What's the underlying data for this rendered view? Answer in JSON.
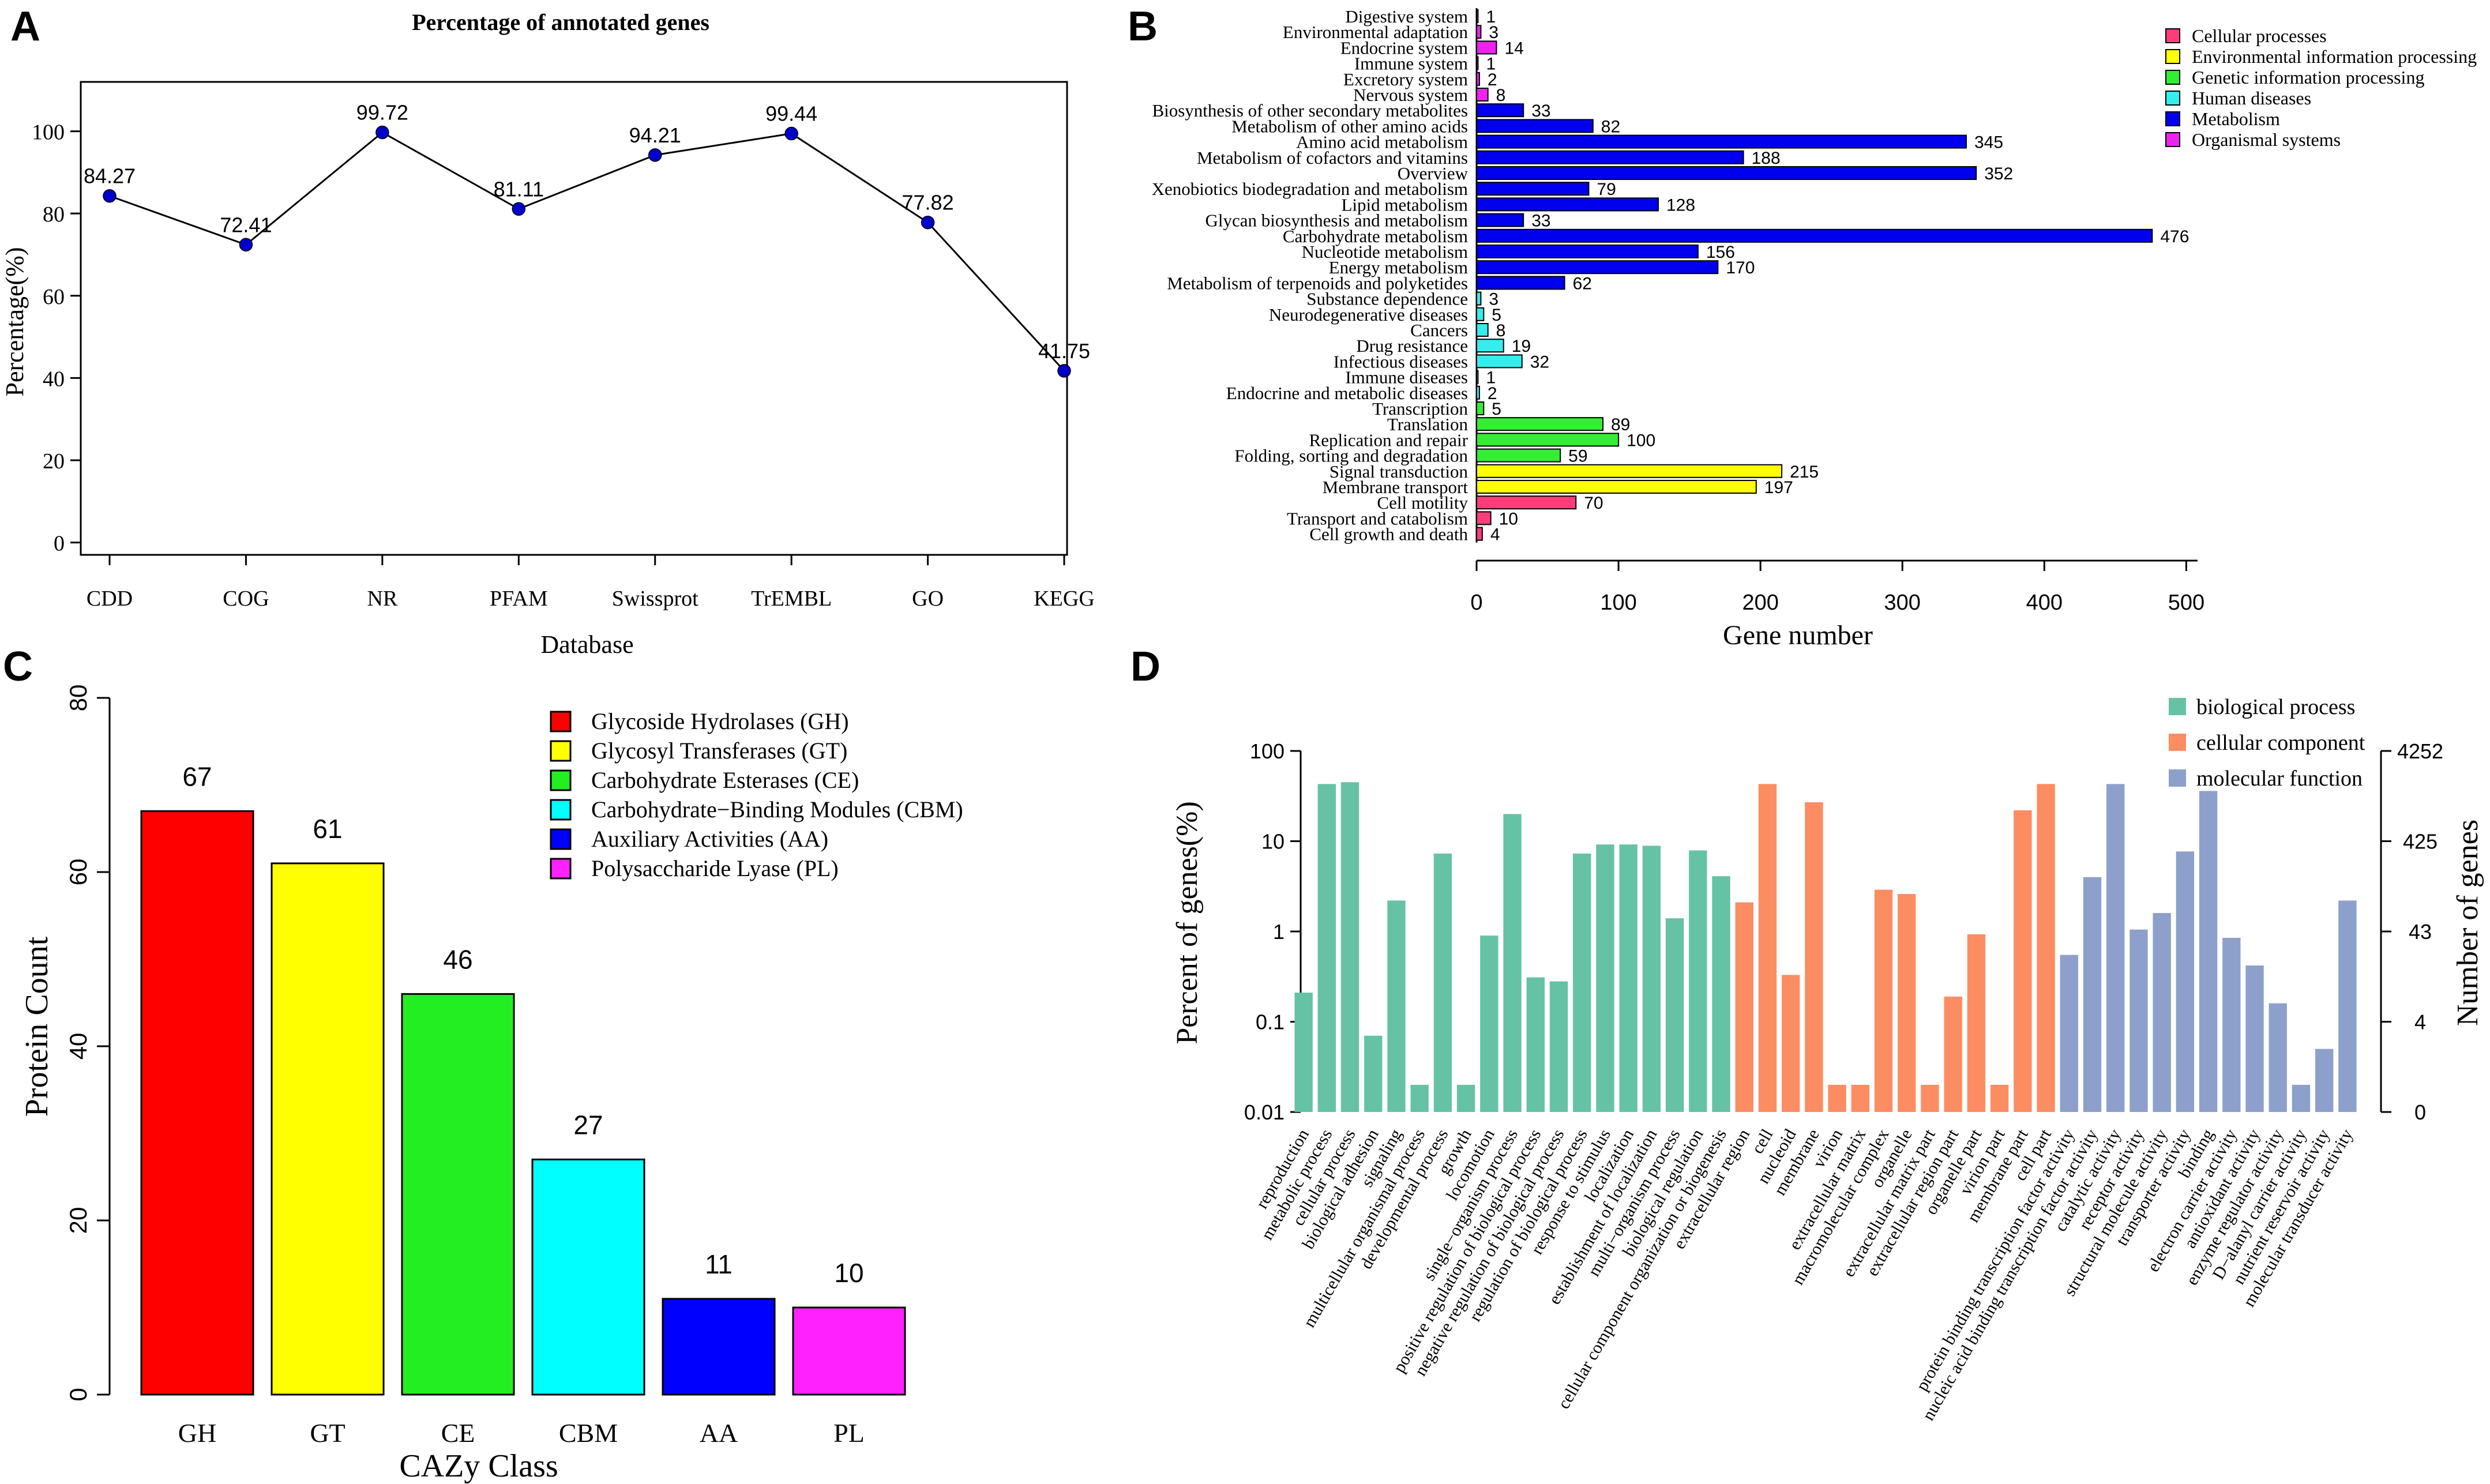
{
  "panels": {
    "a": {
      "letter": "A"
    },
    "b": {
      "letter": "B"
    },
    "c": {
      "letter": "C"
    },
    "d": {
      "letter": "D"
    }
  },
  "chart_data": [
    {
      "id": "a",
      "type": "line",
      "title": "Percentage of annotated genes",
      "xlabel": "Database",
      "ylabel": "Percentage(%)",
      "categories": [
        "CDD",
        "COG",
        "NR",
        "PFAM",
        "Swissprot",
        "TrEMBL",
        "GO",
        "KEGG"
      ],
      "values": [
        84.27,
        72.41,
        99.72,
        81.11,
        94.21,
        99.44,
        77.82,
        41.75
      ],
      "labels": [
        "84.27",
        "72.41",
        "99.72",
        "81.11",
        "94.21",
        "99.44",
        "77.82",
        "41.75"
      ],
      "yticks": [
        0,
        20,
        40,
        60,
        80,
        100
      ],
      "ylim": [
        -3,
        112
      ],
      "point_color": "#0000cc"
    },
    {
      "id": "b",
      "type": "bar",
      "orientation": "horizontal",
      "xlabel": "Gene number",
      "xticks": [
        0,
        100,
        200,
        300,
        400,
        500
      ],
      "xlim": [
        0,
        510
      ],
      "colors": {
        "Cellular processes": "#ff3d7a",
        "Environmental information processing": "#ffff00",
        "Genetic information processing": "#33ee33",
        "Human diseases": "#33eeee",
        "Metabolism": "#0000ee",
        "Organismal systems": "#ee22ee"
      },
      "legend": [
        "Cellular processes",
        "Environmental information processing",
        "Genetic information processing",
        "Human diseases",
        "Metabolism",
        "Organismal systems"
      ],
      "bars": [
        {
          "label": "Digestive system",
          "value": 1,
          "group": "Organismal systems"
        },
        {
          "label": "Environmental adaptation",
          "value": 3,
          "group": "Organismal systems"
        },
        {
          "label": "Endocrine system",
          "value": 14,
          "group": "Organismal systems"
        },
        {
          "label": "Immune system",
          "value": 1,
          "group": "Organismal systems"
        },
        {
          "label": "Excretory system",
          "value": 2,
          "group": "Organismal systems"
        },
        {
          "label": "Nervous system",
          "value": 8,
          "group": "Organismal systems"
        },
        {
          "label": "Biosynthesis of other secondary metabolites",
          "value": 33,
          "group": "Metabolism"
        },
        {
          "label": "Metabolism of other amino acids",
          "value": 82,
          "group": "Metabolism"
        },
        {
          "label": "Amino acid metabolism",
          "value": 345,
          "group": "Metabolism"
        },
        {
          "label": "Metabolism of cofactors and vitamins",
          "value": 188,
          "group": "Metabolism"
        },
        {
          "label": "Overview",
          "value": 352,
          "group": "Metabolism"
        },
        {
          "label": "Xenobiotics biodegradation and metabolism",
          "value": 79,
          "group": "Metabolism"
        },
        {
          "label": "Lipid metabolism",
          "value": 128,
          "group": "Metabolism"
        },
        {
          "label": "Glycan biosynthesis and metabolism",
          "value": 33,
          "group": "Metabolism"
        },
        {
          "label": "Carbohydrate metabolism",
          "value": 476,
          "group": "Metabolism"
        },
        {
          "label": "Nucleotide metabolism",
          "value": 156,
          "group": "Metabolism"
        },
        {
          "label": "Energy metabolism",
          "value": 170,
          "group": "Metabolism"
        },
        {
          "label": "Metabolism of terpenoids and polyketides",
          "value": 62,
          "group": "Metabolism"
        },
        {
          "label": "Substance dependence",
          "value": 3,
          "group": "Human diseases"
        },
        {
          "label": "Neurodegenerative diseases",
          "value": 5,
          "group": "Human diseases"
        },
        {
          "label": "Cancers",
          "value": 8,
          "group": "Human diseases"
        },
        {
          "label": "Drug resistance",
          "value": 19,
          "group": "Human diseases"
        },
        {
          "label": "Infectious diseases",
          "value": 32,
          "group": "Human diseases"
        },
        {
          "label": "Immune diseases",
          "value": 1,
          "group": "Human diseases"
        },
        {
          "label": "Endocrine and metabolic diseases",
          "value": 2,
          "group": "Human diseases"
        },
        {
          "label": "Transcription",
          "value": 5,
          "group": "Genetic information processing"
        },
        {
          "label": "Translation",
          "value": 89,
          "group": "Genetic information processing"
        },
        {
          "label": "Replication and repair",
          "value": 100,
          "group": "Genetic information processing"
        },
        {
          "label": "Folding, sorting and degradation",
          "value": 59,
          "group": "Genetic information processing"
        },
        {
          "label": "Signal transduction",
          "value": 215,
          "group": "Environmental information processing"
        },
        {
          "label": "Membrane transport",
          "value": 197,
          "group": "Environmental information processing"
        },
        {
          "label": "Cell motility",
          "value": 70,
          "group": "Cellular processes"
        },
        {
          "label": "Transport and catabolism",
          "value": 10,
          "group": "Cellular processes"
        },
        {
          "label": "Cell growth and death",
          "value": 4,
          "group": "Cellular processes"
        }
      ]
    },
    {
      "id": "c",
      "type": "bar",
      "xlabel": "CAZy Class",
      "ylabel": "Protein Count",
      "categories": [
        "GH",
        "GT",
        "CE",
        "CBM",
        "AA",
        "PL"
      ],
      "values": [
        67,
        61,
        46,
        27,
        11,
        10
      ],
      "colors": [
        "#ff0000",
        "#ffff00",
        "#22ee22",
        "#00ffff",
        "#0000ff",
        "#ff22ff"
      ],
      "legend": [
        "Glycoside Hydrolases (GH)",
        "Glycosyl Transferases (GT)",
        "Carbohydrate Esterases (CE)",
        "Carbohydrate−Binding Modules (CBM)",
        "Auxiliary Activities (AA)",
        "Polysaccharide Lyase (PL)"
      ],
      "yticks": [
        0,
        20,
        40,
        60,
        80
      ],
      "ylim": [
        0,
        80
      ]
    },
    {
      "id": "d",
      "type": "bar",
      "scale": "log",
      "ylabel": "Percent of genes(%)",
      "y2label": "Number of genes",
      "yticks": [
        "0.01",
        "0.1",
        "1",
        "10",
        "100"
      ],
      "y2ticks": [
        "0",
        "4",
        "43",
        "425",
        "4252"
      ],
      "ylim": [
        0.01,
        100
      ],
      "colors": {
        "biological process": "#66c2a5",
        "cellular component": "#fc8d62",
        "molecular function": "#8da0cb"
      },
      "legend": [
        "biological process",
        "cellular component",
        "molecular function"
      ],
      "bars": [
        {
          "label": "reproduction",
          "value": 0.21,
          "group": "biological process"
        },
        {
          "label": "metabolic process",
          "value": 43,
          "group": "biological process"
        },
        {
          "label": "cellular process",
          "value": 45,
          "group": "biological process"
        },
        {
          "label": "biological adhesion",
          "value": 0.07,
          "group": "biological process"
        },
        {
          "label": "signaling",
          "value": 2.2,
          "group": "biological process"
        },
        {
          "label": "multicellular organismal process",
          "value": 0.02,
          "group": "biological process"
        },
        {
          "label": "developmental process",
          "value": 7.3,
          "group": "biological process"
        },
        {
          "label": "growth",
          "value": 0.02,
          "group": "biological process"
        },
        {
          "label": "locomotion",
          "value": 0.9,
          "group": "biological process"
        },
        {
          "label": "single−organism process",
          "value": 20,
          "group": "biological process"
        },
        {
          "label": "positive regulation of biological process",
          "value": 0.31,
          "group": "biological process"
        },
        {
          "label": "negative regulation of biological process",
          "value": 0.28,
          "group": "biological process"
        },
        {
          "label": "regulation of biological process",
          "value": 7.3,
          "group": "biological process"
        },
        {
          "label": "response to stimulus",
          "value": 9.2,
          "group": "biological process"
        },
        {
          "label": "localization",
          "value": 9.2,
          "group": "biological process"
        },
        {
          "label": "establishment of localization",
          "value": 8.9,
          "group": "biological process"
        },
        {
          "label": "multi−organism process",
          "value": 1.4,
          "group": "biological process"
        },
        {
          "label": "biological regulation",
          "value": 7.9,
          "group": "biological process"
        },
        {
          "label": "cellular component organization or biogenesis",
          "value": 4.1,
          "group": "biological process"
        },
        {
          "label": "extracellular region",
          "value": 2.1,
          "group": "cellular component"
        },
        {
          "label": "cell",
          "value": 43,
          "group": "cellular component"
        },
        {
          "label": "nucleoid",
          "value": 0.33,
          "group": "cellular component"
        },
        {
          "label": "membrane",
          "value": 27,
          "group": "cellular component"
        },
        {
          "label": "virion",
          "value": 0.02,
          "group": "cellular component"
        },
        {
          "label": "extracellular matrix",
          "value": 0.02,
          "group": "cellular component"
        },
        {
          "label": "macromolecular complex",
          "value": 2.9,
          "group": "cellular component"
        },
        {
          "label": "organelle",
          "value": 2.6,
          "group": "cellular component"
        },
        {
          "label": "extracellular matrix part",
          "value": 0.02,
          "group": "cellular component"
        },
        {
          "label": "extracellular region part",
          "value": 0.19,
          "group": "cellular component"
        },
        {
          "label": "organelle part",
          "value": 0.93,
          "group": "cellular component"
        },
        {
          "label": "virion part",
          "value": 0.02,
          "group": "cellular component"
        },
        {
          "label": "membrane part",
          "value": 22,
          "group": "cellular component"
        },
        {
          "label": "cell part",
          "value": 43,
          "group": "cellular component"
        },
        {
          "label": "protein binding transcription factor activity",
          "value": 0.55,
          "group": "molecular function"
        },
        {
          "label": "nucleic acid binding transcription factor activity",
          "value": 4,
          "group": "molecular function"
        },
        {
          "label": "catalytic activity",
          "value": 43,
          "group": "molecular function"
        },
        {
          "label": "receptor activity",
          "value": 1.05,
          "group": "molecular function"
        },
        {
          "label": "structural molecule activity",
          "value": 1.6,
          "group": "molecular function"
        },
        {
          "label": "transporter activity",
          "value": 7.7,
          "group": "molecular function"
        },
        {
          "label": "binding",
          "value": 36,
          "group": "molecular function"
        },
        {
          "label": "electron carrier activity",
          "value": 0.85,
          "group": "molecular function"
        },
        {
          "label": "antioxidant activity",
          "value": 0.42,
          "group": "molecular function"
        },
        {
          "label": "enzyme regulator activity",
          "value": 0.16,
          "group": "molecular function"
        },
        {
          "label": "D−alanyl carrier activity",
          "value": 0.02,
          "group": "molecular function"
        },
        {
          "label": "nutrient reservoir activity",
          "value": 0.05,
          "group": "molecular function"
        },
        {
          "label": "molecular transducer activity",
          "value": 2.2,
          "group": "molecular function"
        }
      ]
    }
  ]
}
